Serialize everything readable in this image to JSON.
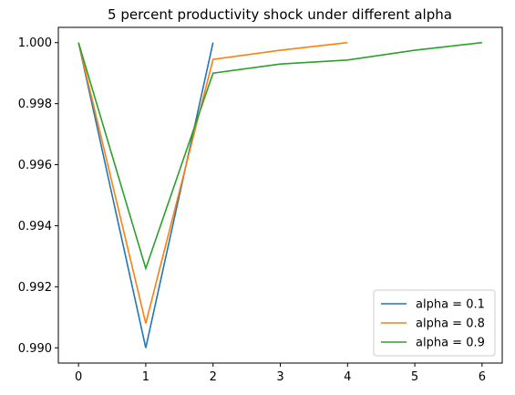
{
  "chart_data": {
    "type": "line",
    "title": "5 percent productivity shock under different alpha",
    "xlabel": "",
    "ylabel": "",
    "xlim": [
      -0.3,
      6.3
    ],
    "ylim": [
      0.9895,
      1.0005
    ],
    "x_ticks": [
      0,
      1,
      2,
      3,
      4,
      5,
      6
    ],
    "y_ticks": [
      0.99,
      0.992,
      0.994,
      0.996,
      0.998,
      1.0
    ],
    "y_tick_labels": [
      "0.990",
      "0.992",
      "0.994",
      "0.996",
      "0.998",
      "1.000"
    ],
    "grid": false,
    "legend_position": "lower-right",
    "series": [
      {
        "name": "alpha = 0.1",
        "color": "#1f77b4",
        "x": [
          0,
          1,
          2
        ],
        "y": [
          1.0,
          0.99,
          1.0
        ]
      },
      {
        "name": "alpha = 0.8",
        "color": "#ff7f0e",
        "x": [
          0,
          1,
          2,
          3,
          4
        ],
        "y": [
          1.0,
          0.9908,
          0.99945,
          0.99975,
          1.0
        ]
      },
      {
        "name": "alpha = 0.9",
        "color": "#2ca02c",
        "x": [
          0,
          1,
          2,
          3,
          4,
          5,
          6
        ],
        "y": [
          1.0,
          0.9926,
          0.999,
          0.9993,
          0.99943,
          0.99975,
          1.0
        ]
      }
    ]
  }
}
